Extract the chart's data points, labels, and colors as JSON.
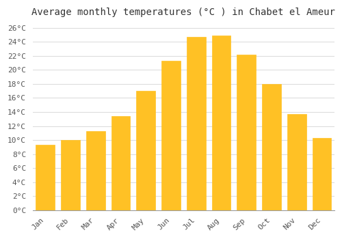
{
  "title": "Average monthly temperatures (°C ) in Chabet el Ameur",
  "months": [
    "Jan",
    "Feb",
    "Mar",
    "Apr",
    "May",
    "Jun",
    "Jul",
    "Aug",
    "Sep",
    "Oct",
    "Nov",
    "Dec"
  ],
  "values": [
    9.3,
    10.0,
    11.3,
    13.4,
    17.0,
    21.3,
    24.7,
    24.9,
    22.2,
    18.0,
    13.7,
    10.3
  ],
  "bar_color_top": "#FFC125",
  "bar_color_bottom": "#FFB300",
  "bar_edge_color": "#E8A000",
  "background_color": "#FFFFFF",
  "grid_color": "#DDDDDD",
  "ylim": [
    0,
    27
  ],
  "ytick_step": 2,
  "title_fontsize": 10,
  "tick_fontsize": 8,
  "font_family": "monospace"
}
